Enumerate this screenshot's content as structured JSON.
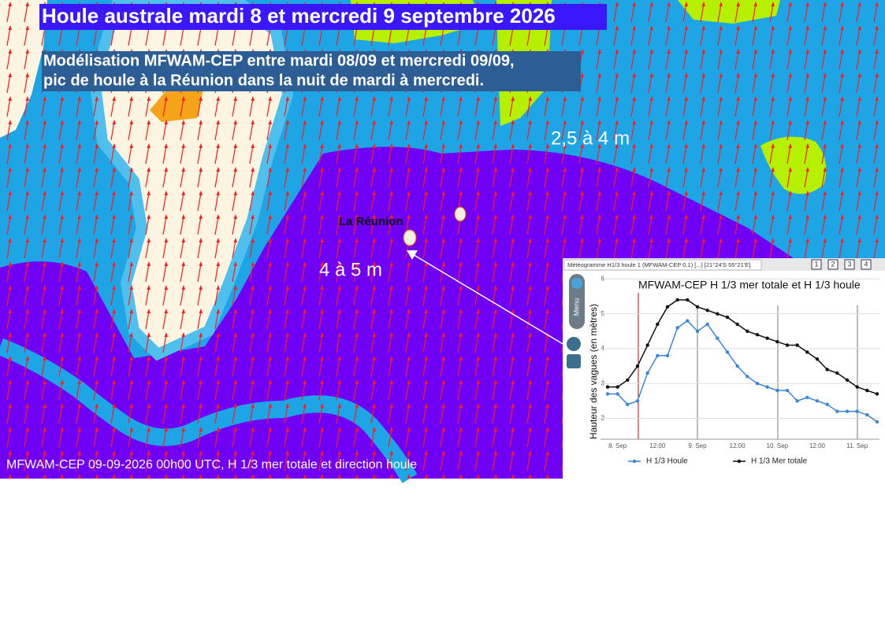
{
  "header": {
    "title": "Houle australe mardi 8 et mercredi 9 septembre 2026",
    "subtitle": [
      "Modélisation MFWAM-CEP entre mardi 08/09 et mercredi 09/09,",
      "pic de houle à la Réunion dans la nuit de mardi à mercredi."
    ]
  },
  "map": {
    "labels": [
      "La Réunion",
      "4 à 5 m",
      "2,5 à 4 m"
    ],
    "caption": "MFWAM-CEP 09-09-2026 00h00 UTC, H 1/3 mer totale et direction houle"
  },
  "window": {
    "title": "Météogramme H1/3 houle 1 (MFWAM-CEP 0.1) [...] [21°24'S 55°21'E]",
    "buttons": [
      "1",
      "2",
      "3",
      "4"
    ],
    "menu": "Menu"
  },
  "chart_data": {
    "type": "line",
    "title": "MFWAM-CEP H 1/3 mer totale et H 1/3 houle",
    "y_label": "Hauteur des vagues (en mètres)",
    "categories": [
      null,
      "8. Sep",
      null,
      null,
      null,
      "12:00",
      null,
      null,
      null,
      "9. Sep",
      null,
      null,
      null,
      "12:00",
      null,
      null,
      null,
      "10. Sep",
      null,
      null,
      null,
      "12:00",
      null,
      null,
      null,
      "11. Sep",
      null,
      null
    ],
    "series": [
      {
        "name": "H 1/3 Houle",
        "color": "#3a86d8",
        "values": [
          2.7,
          2.7,
          2.4,
          2.5,
          3.3,
          3.8,
          3.8,
          4.6,
          4.8,
          4.5,
          4.7,
          4.3,
          3.9,
          3.5,
          3.2,
          3.0,
          2.9,
          2.8,
          2.8,
          2.5,
          2.6,
          2.5,
          2.4,
          2.2,
          2.2,
          2.2,
          2.1,
          1.9
        ]
      },
      {
        "name": "H 1/3 Mer totale",
        "color": "#111111",
        "values": [
          2.9,
          2.9,
          3.1,
          3.5,
          4.1,
          4.7,
          5.2,
          5.4,
          5.4,
          5.2,
          5.1,
          5.0,
          4.9,
          4.7,
          4.5,
          4.4,
          4.3,
          4.2,
          4.1,
          4.1,
          3.9,
          3.7,
          3.4,
          3.3,
          3.1,
          2.9,
          2.8,
          2.7
        ]
      }
    ],
    "ylim": [
      1.4,
      6.1
    ],
    "yticks": [
      2,
      3,
      4,
      5,
      6
    ],
    "grid": true
  }
}
